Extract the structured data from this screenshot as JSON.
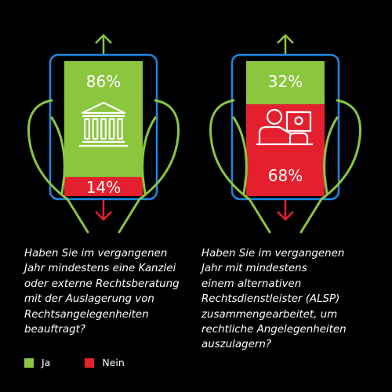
{
  "chart_data": [
    {
      "type": "bar",
      "question": "Haben Sie im vergangenen\nJahr mindestens eine Kanzlei\noder externe Rechtsberatung\nmit der Auslagerung von\nRechtsangelegenheiten\nbeauftragt?",
      "series": [
        {
          "name": "Ja",
          "value": 86,
          "label": "86%"
        },
        {
          "name": "Nein",
          "value": 14,
          "label": "14%"
        }
      ],
      "unit": "%",
      "icon": "bank-building-icon"
    },
    {
      "type": "bar",
      "question": "Haben Sie im vergangenen\nJahr mit mindestens\neinem alternativen\nRechtsdienstleister (ALSP)\nzusammengearbeitet, um\nrechtliche Angelegenheiten\nauszulagern?",
      "series": [
        {
          "name": "Ja",
          "value": 32,
          "label": "32%"
        },
        {
          "name": "Nein",
          "value": 68,
          "label": "68%"
        }
      ],
      "unit": "%",
      "icon": "presenter-screen-icon"
    }
  ],
  "legend": [
    {
      "label": "Ja",
      "color": "#8cc63f"
    },
    {
      "label": "Nein",
      "color": "#e5202e"
    }
  ],
  "colors": {
    "ja": "#8cc63f",
    "nein": "#e5202e",
    "tablet_outline": "#1e88e5",
    "hand_outline": "#8cc63f",
    "arrow_up": "#8cc63f",
    "arrow_down": "#e5202e",
    "text": "#ffffff",
    "background": "#000000"
  }
}
